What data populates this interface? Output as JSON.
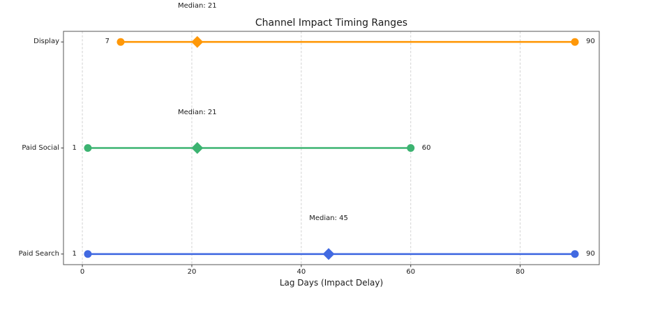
{
  "chart_data": {
    "type": "dumbbell-range",
    "title": "Channel Impact Timing Ranges",
    "xlabel": "Lag Days (Impact Delay)",
    "ylabel": "",
    "x_ticks": [
      0,
      20,
      40,
      60,
      80
    ],
    "x_tick_labels": [
      "0",
      "20",
      "40",
      "60",
      "80"
    ],
    "xlim": [
      -3.45,
      94.45
    ],
    "ylim": [
      -0.1,
      2.1
    ],
    "grid": "vertical-dashed",
    "legend": "none",
    "categories": [
      "Display",
      "Paid Social",
      "Paid Search"
    ],
    "series": [
      {
        "category": "Display",
        "min": 7,
        "median": 21,
        "max": 90,
        "min_label": "7",
        "max_label": "90",
        "annotation": "Median: 21",
        "color": "#FF9808"
      },
      {
        "category": "Paid Social",
        "min": 1,
        "median": 21,
        "max": 60,
        "min_label": "1",
        "max_label": "60",
        "annotation": "Median: 21",
        "color": "#3CB371"
      },
      {
        "category": "Paid Search",
        "min": 1,
        "median": 45,
        "max": 90,
        "min_label": "1",
        "max_label": "90",
        "annotation": "Median: 45",
        "color": "#4169E1"
      }
    ],
    "colors": {
      "grid": "#d2d2d2",
      "spine": "#565656",
      "tick": "#333333",
      "text": "#1a1a1a",
      "background": "#ffffff"
    }
  }
}
